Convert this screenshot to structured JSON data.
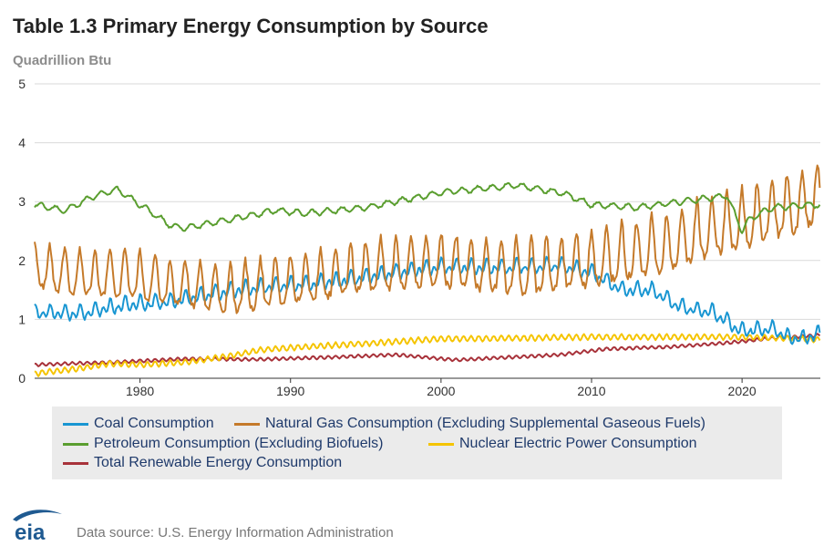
{
  "page": {
    "title": "Table 1.3 Primary Energy Consumption by Source",
    "unit_label": "Quadrillion Btu",
    "source": "Data source: U.S. Energy Information Administration",
    "logo_text": "eia"
  },
  "colors": {
    "coal": "#1996d2",
    "gas": "#c57a2a",
    "petroleum": "#5a9e2f",
    "nuclear": "#f5c400",
    "renewable": "#a8323a",
    "grid": "#d9d9d9",
    "legend_bg": "#ebebeb",
    "logo": "#1f5a91"
  },
  "chart_data": {
    "type": "line",
    "title": "Table 1.3 Primary Energy Consumption by Source",
    "ylabel": "Quadrillion Btu",
    "xlabel": "",
    "frequency": "monthly",
    "xlim": [
      1973,
      2025.2
    ],
    "ylim": [
      0,
      5
    ],
    "yticks": [
      0,
      1,
      2,
      3,
      4,
      5
    ],
    "xticks": [
      1980,
      1990,
      2000,
      2010,
      2020
    ],
    "grid": true,
    "legend_position": "bottom",
    "series": [
      {
        "key": "coal",
        "name": "Coal Consumption",
        "seasonal_amplitude": 0.12,
        "annual_points": [
          [
            1973,
            1.12
          ],
          [
            1976,
            1.1
          ],
          [
            1979,
            1.25
          ],
          [
            1982,
            1.3
          ],
          [
            1985,
            1.45
          ],
          [
            1988,
            1.55
          ],
          [
            1991,
            1.6
          ],
          [
            1994,
            1.68
          ],
          [
            1997,
            1.8
          ],
          [
            2000,
            1.9
          ],
          [
            2003,
            1.88
          ],
          [
            2006,
            1.9
          ],
          [
            2008,
            1.92
          ],
          [
            2010,
            1.8
          ],
          [
            2012,
            1.5
          ],
          [
            2014,
            1.5
          ],
          [
            2016,
            1.2
          ],
          [
            2018,
            1.12
          ],
          [
            2020,
            0.8
          ],
          [
            2022,
            0.85
          ],
          [
            2023,
            0.7
          ],
          [
            2024,
            0.68
          ],
          [
            2025.2,
            0.75
          ]
        ]
      },
      {
        "key": "gas",
        "name": "Natural Gas Consumption (Excluding Supplemental Gaseous Fuels)",
        "seasonal_amplitude": 0.42,
        "annual_points": [
          [
            1973,
            1.85
          ],
          [
            1976,
            1.72
          ],
          [
            1979,
            1.72
          ],
          [
            1982,
            1.58
          ],
          [
            1986,
            1.45
          ],
          [
            1990,
            1.6
          ],
          [
            1995,
            1.82
          ],
          [
            2000,
            1.92
          ],
          [
            2003,
            1.85
          ],
          [
            2006,
            1.8
          ],
          [
            2009,
            1.9
          ],
          [
            2012,
            2.05
          ],
          [
            2015,
            2.2
          ],
          [
            2018,
            2.5
          ],
          [
            2020,
            2.6
          ],
          [
            2022,
            2.8
          ],
          [
            2024,
            2.92
          ],
          [
            2025.2,
            3.05
          ]
        ]
      },
      {
        "key": "petroleum",
        "name": "Petroleum Consumption (Excluding Biofuels)",
        "seasonal_amplitude": 0.08,
        "annual_points": [
          [
            1973,
            2.95
          ],
          [
            1975,
            2.85
          ],
          [
            1977,
            3.1
          ],
          [
            1978.5,
            3.2
          ],
          [
            1980,
            2.95
          ],
          [
            1982,
            2.6
          ],
          [
            1983,
            2.55
          ],
          [
            1986,
            2.7
          ],
          [
            1989,
            2.85
          ],
          [
            1991,
            2.8
          ],
          [
            1995,
            2.9
          ],
          [
            1998,
            3.05
          ],
          [
            2000,
            3.15
          ],
          [
            2005,
            3.28
          ],
          [
            2008,
            3.15
          ],
          [
            2010,
            2.95
          ],
          [
            2013,
            2.9
          ],
          [
            2016,
            3.0
          ],
          [
            2019,
            3.1
          ],
          [
            2020,
            2.5
          ],
          [
            2020.5,
            2.7
          ],
          [
            2022,
            2.9
          ],
          [
            2025.2,
            2.95
          ]
        ]
      },
      {
        "key": "nuclear",
        "name": "Nuclear Electric Power Consumption",
        "seasonal_amplitude": 0.045,
        "annual_points": [
          [
            1973,
            0.08
          ],
          [
            1976,
            0.17
          ],
          [
            1978,
            0.25
          ],
          [
            1980,
            0.23
          ],
          [
            1983,
            0.27
          ],
          [
            1986,
            0.38
          ],
          [
            1988,
            0.48
          ],
          [
            1990,
            0.52
          ],
          [
            1995,
            0.59
          ],
          [
            2000,
            0.67
          ],
          [
            2005,
            0.68
          ],
          [
            2010,
            0.7
          ],
          [
            2015,
            0.7
          ],
          [
            2020,
            0.7
          ],
          [
            2025.2,
            0.66
          ]
        ]
      },
      {
        "key": "renewable",
        "name": "Total Renewable Energy Consumption",
        "seasonal_amplitude": 0.025,
        "annual_points": [
          [
            1973,
            0.23
          ],
          [
            1978,
            0.27
          ],
          [
            1983,
            0.33
          ],
          [
            1988,
            0.32
          ],
          [
            1993,
            0.36
          ],
          [
            1997,
            0.4
          ],
          [
            2001,
            0.31
          ],
          [
            2004,
            0.35
          ],
          [
            2008,
            0.4
          ],
          [
            2011,
            0.5
          ],
          [
            2015,
            0.53
          ],
          [
            2019,
            0.6
          ],
          [
            2022,
            0.68
          ],
          [
            2025.2,
            0.73
          ]
        ]
      }
    ]
  }
}
